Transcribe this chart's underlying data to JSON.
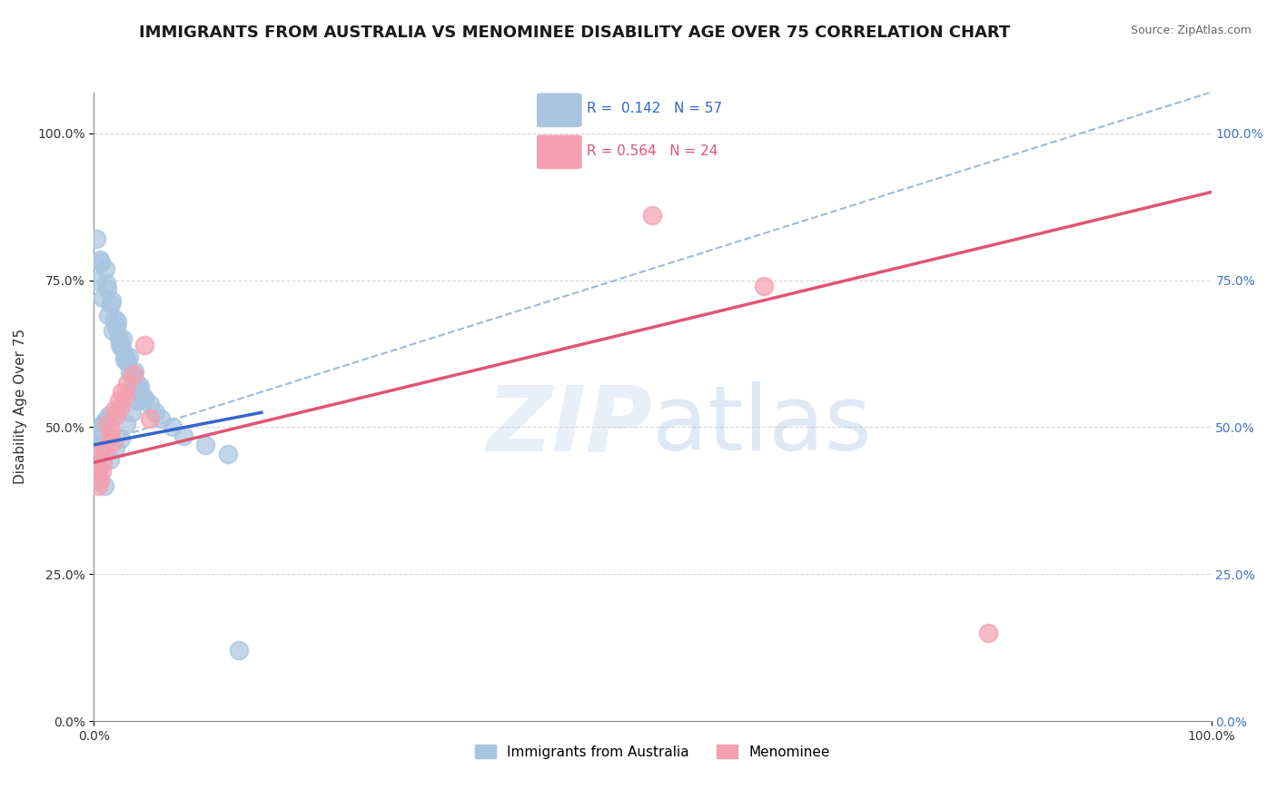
{
  "title": "IMMIGRANTS FROM AUSTRALIA VS MENOMINEE DISABILITY AGE OVER 75 CORRELATION CHART",
  "source": "Source: ZipAtlas.com",
  "xlabel": "",
  "ylabel": "Disability Age Over 75",
  "legend_labels": [
    "Immigrants from Australia",
    "Menominee"
  ],
  "blue_R": 0.142,
  "blue_N": 57,
  "pink_R": 0.564,
  "pink_N": 24,
  "blue_color": "#a8c4e0",
  "pink_color": "#f4a0b0",
  "blue_line_color": "#3366cc",
  "pink_line_color": "#e05575",
  "dashed_line_color": "#a0b8d8",
  "watermark_zip": "#c5d8f0",
  "watermark_atlas": "#b0c8e8",
  "blue_x": [
    0.2,
    0.5,
    1.0,
    1.2,
    1.5,
    1.8,
    2.0,
    2.2,
    2.5,
    2.8,
    3.0,
    3.2,
    3.5,
    3.8,
    4.0,
    4.5,
    5.0,
    5.5,
    6.0,
    7.0,
    8.0,
    10.0,
    12.0,
    0.3,
    0.8,
    1.3,
    1.7,
    2.3,
    2.7,
    3.3,
    3.7,
    4.2,
    0.6,
    1.1,
    1.6,
    2.1,
    2.6,
    3.1,
    3.6,
    4.1,
    0.4,
    0.9,
    1.4,
    1.9,
    2.4,
    2.9,
    3.4,
    3.9,
    4.4,
    13.0,
    0.15,
    0.35,
    0.55,
    0.75,
    0.95,
    1.15,
    1.35
  ],
  "blue_y": [
    82.0,
    78.5,
    77.0,
    73.5,
    71.0,
    68.5,
    67.0,
    65.0,
    63.5,
    62.0,
    61.0,
    59.5,
    58.5,
    57.5,
    56.5,
    55.0,
    54.0,
    52.5,
    51.5,
    50.0,
    48.5,
    47.0,
    45.5,
    75.0,
    72.0,
    69.0,
    66.5,
    64.0,
    61.5,
    59.0,
    57.0,
    55.5,
    78.0,
    74.5,
    71.5,
    68.0,
    65.0,
    62.0,
    59.5,
    57.0,
    43.0,
    40.0,
    44.5,
    46.5,
    48.0,
    50.5,
    52.5,
    54.5,
    55.0,
    12.0,
    47.0,
    48.5,
    49.5,
    50.5,
    51.0,
    51.5,
    52.0
  ],
  "pink_x": [
    0.3,
    0.5,
    0.8,
    1.2,
    1.5,
    1.8,
    2.2,
    2.5,
    3.0,
    0.4,
    0.7,
    1.0,
    1.4,
    1.7,
    2.0,
    2.4,
    2.8,
    3.5,
    4.5,
    50.0,
    60.0,
    80.0,
    0.6,
    5.0
  ],
  "pink_y": [
    43.0,
    41.0,
    44.0,
    50.5,
    49.5,
    53.0,
    54.5,
    56.0,
    57.5,
    40.0,
    42.5,
    46.0,
    48.5,
    47.5,
    52.0,
    53.5,
    55.5,
    59.0,
    64.0,
    86.0,
    74.0,
    15.0,
    46.0,
    51.5
  ],
  "xlim": [
    0,
    100
  ],
  "ylim": [
    0,
    105
  ],
  "ytick_labels": [
    "0.0%",
    "25.0%",
    "50.0%",
    "75.0%",
    "100.0%"
  ],
  "ytick_values": [
    0,
    25,
    50,
    75,
    100
  ],
  "xtick_labels": [
    "0.0%",
    "100.0%"
  ],
  "xtick_values": [
    0,
    100
  ],
  "right_ytick_color": "#4472c4",
  "title_fontsize": 13,
  "axis_fontsize": 11,
  "tick_fontsize": 10
}
